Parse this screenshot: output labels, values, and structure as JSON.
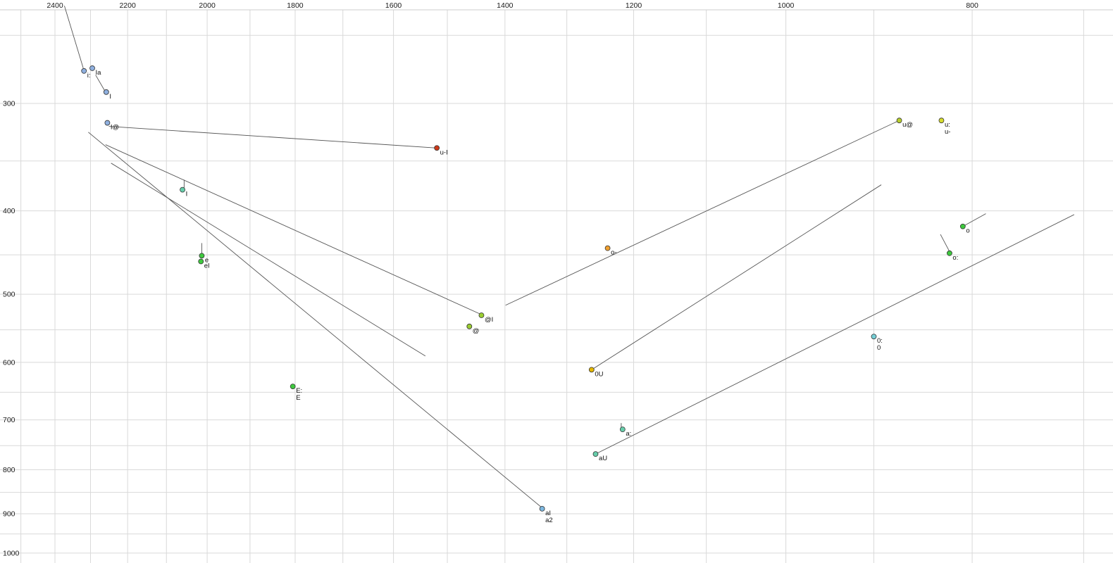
{
  "chart_data": {
    "type": "scatter",
    "title": "",
    "x_axis": {
      "unit": "Hz",
      "scale": "log",
      "reversed": true,
      "domain": [
        2564,
        676
      ],
      "tick_labels": [
        2400,
        2200,
        2000,
        1800,
        1600,
        1400,
        1200,
        1000,
        800
      ],
      "gridlines": [
        2500,
        2400,
        2300,
        2200,
        2100,
        2000,
        1900,
        1800,
        1700,
        1600,
        1500,
        1400,
        1300,
        1200,
        1100,
        1000,
        900,
        800,
        700
      ]
    },
    "y_axis": {
      "unit": "Hz",
      "scale": "log",
      "reversed": false,
      "domain": [
        233,
        1027
      ],
      "tick_labels": [
        300,
        400,
        500,
        600,
        700,
        800,
        900,
        1000
      ],
      "gridlines": [
        250,
        300,
        350,
        400,
        450,
        500,
        550,
        600,
        650,
        700,
        750,
        800,
        850,
        900,
        950,
        1000
      ]
    },
    "points": [
      {
        "labels": [
          "i:"
        ],
        "f2": 2318,
        "f1": 275,
        "color": "#8fb0e0"
      },
      {
        "labels": [
          "Ia"
        ],
        "f2": 2295,
        "f1": 273,
        "color": "#8fb0e0"
      },
      {
        "labels": [
          "I"
        ],
        "f2": 2257,
        "f1": 291,
        "color": "#8fb0e0"
      },
      {
        "labels": [
          "I@"
        ],
        "f2": 2254,
        "f1": 316,
        "color": "#8fb0e0"
      },
      {
        "labels": [
          "u-I"
        ],
        "f2": 1519,
        "f1": 338,
        "color": "#cc3a1a"
      },
      {
        "labels": [
          "I"
        ],
        "f2": 2060,
        "f1": 378,
        "color": "#66cdaa"
      },
      {
        "labels": [
          "e"
        ],
        "f2": 2013,
        "f1": 451,
        "color": "#3fc93f"
      },
      {
        "labels": [
          "eI"
        ],
        "f2": 2015,
        "f1": 458,
        "color": "#3fc93f"
      },
      {
        "labels": [
          "E:",
          "E"
        ],
        "f2": 1805,
        "f1": 640,
        "color": "#3fc93f"
      },
      {
        "labels": [
          "@I"
        ],
        "f2": 1440,
        "f1": 529,
        "color": "#9acd32"
      },
      {
        "labels": [
          "@"
        ],
        "f2": 1461,
        "f1": 545,
        "color": "#9acd32"
      },
      {
        "labels": [
          "o-"
        ],
        "f2": 1238,
        "f1": 442,
        "color": "#f0a030"
      },
      {
        "labels": [
          "0U"
        ],
        "f2": 1262,
        "f1": 612,
        "color": "#e5b800"
      },
      {
        "labels": [
          "a:"
        ],
        "f2": 1216,
        "f1": 718,
        "color": "#66cdaa"
      },
      {
        "labels": [
          "aU"
        ],
        "f2": 1256,
        "f1": 767,
        "color": "#66cdaa"
      },
      {
        "labels": [
          "aI",
          "a2"
        ],
        "f2": 1339,
        "f1": 888,
        "color": "#7db8e0"
      },
      {
        "labels": [
          "u@"
        ],
        "f2": 873,
        "f1": 314,
        "color": "#b8cf2e"
      },
      {
        "labels": [
          "u:",
          "u-"
        ],
        "f2": 830,
        "f1": 314,
        "color": "#d6dc2e"
      },
      {
        "labels": [
          "o"
        ],
        "f2": 809,
        "f1": 417,
        "color": "#3fc93f"
      },
      {
        "labels": [
          "o:"
        ],
        "f2": 822,
        "f1": 448,
        "color": "#3fc93f"
      },
      {
        "labels": [
          "0:",
          "0"
        ],
        "f2": 900,
        "f1": 560,
        "color": "#76cfd6"
      }
    ],
    "lines": [
      {
        "f2a": 2373,
        "f1a": 231,
        "f2b": 2320,
        "f1b": 273
      },
      {
        "f2a": 2286,
        "f1a": 278,
        "f2b": 2261,
        "f1b": 290
      },
      {
        "f2a": 2250,
        "f1a": 319,
        "f2b": 1519,
        "f1b": 338
      },
      {
        "f2a": 2306,
        "f1a": 324,
        "f2b": 1339,
        "f1b": 886
      },
      {
        "f2a": 2259,
        "f1a": 335,
        "f2b": 1440,
        "f1b": 528
      },
      {
        "f2a": 2244,
        "f1a": 352,
        "f2b": 1540,
        "f1b": 590
      },
      {
        "f2a": 1262,
        "f1a": 612,
        "f2b": 892,
        "f1b": 373
      },
      {
        "f2a": 873,
        "f1a": 314,
        "f2b": 1399,
        "f1b": 515
      },
      {
        "f2a": 1256,
        "f1a": 767,
        "f2b": 708,
        "f1b": 404
      },
      {
        "f2a": 809,
        "f1a": 417,
        "f2b": 787,
        "f1b": 403
      },
      {
        "f2a": 831,
        "f1a": 426,
        "f2b": 822,
        "f1b": 446
      },
      {
        "f2a": 2056,
        "f1a": 368,
        "f2b": 2056,
        "f1b": 376
      },
      {
        "f2a": 2013,
        "f1a": 436,
        "f2b": 2013,
        "f1b": 450
      },
      {
        "f2a": 1218,
        "f1a": 706,
        "f2b": 1218,
        "f1b": 717
      }
    ],
    "colors": {
      "background": "#ffffff",
      "grid": "#d9d9d9",
      "frame": "#cccccc",
      "trajectory": "#555555",
      "point_outline": "#333333",
      "point_label": "#111111",
      "axis_text": "#1a1a1a"
    }
  }
}
